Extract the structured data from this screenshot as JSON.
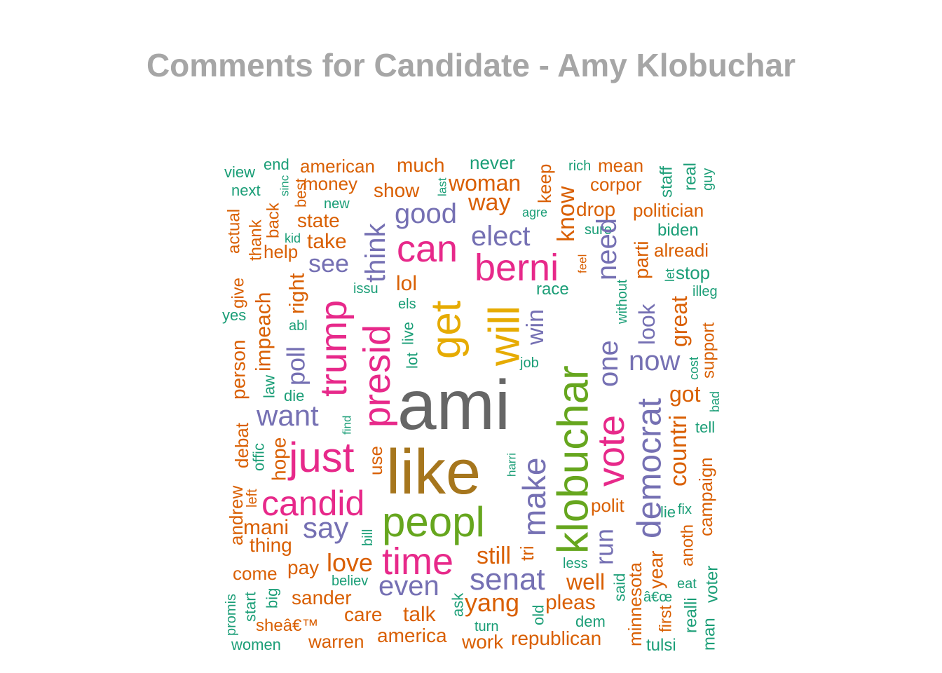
{
  "chart_data": {
    "type": "wordcloud",
    "title": "Comments for Candidate - Amy Klobuchar",
    "palette": {
      "orange": "#d95f02",
      "teal": "#1b9e77",
      "purple": "#7570b3",
      "magenta": "#e7298a",
      "green": "#66a61e",
      "gold": "#e6ab02",
      "brown": "#a6761d",
      "gray": "#666666"
    },
    "words": [
      {
        "text": "view",
        "color": "teal",
        "rotated": false
      },
      {
        "text": "end",
        "color": "teal",
        "rotated": false
      },
      {
        "text": "sinc",
        "color": "teal",
        "rotated": true
      },
      {
        "text": "next",
        "color": "teal",
        "rotated": false
      },
      {
        "text": "best",
        "color": "orange",
        "rotated": true
      },
      {
        "text": "american",
        "color": "orange",
        "rotated": false
      },
      {
        "text": "money",
        "color": "orange",
        "rotated": false
      },
      {
        "text": "much",
        "color": "orange",
        "rotated": false
      },
      {
        "text": "last",
        "color": "teal",
        "rotated": true
      },
      {
        "text": "show",
        "color": "orange",
        "rotated": false
      },
      {
        "text": "never",
        "color": "teal",
        "rotated": false
      },
      {
        "text": "woman",
        "color": "orange",
        "rotated": false
      },
      {
        "text": "keep",
        "color": "orange",
        "rotated": true
      },
      {
        "text": "rich",
        "color": "teal",
        "rotated": false
      },
      {
        "text": "mean",
        "color": "orange",
        "rotated": false
      },
      {
        "text": "corpor",
        "color": "orange",
        "rotated": false
      },
      {
        "text": "staff",
        "color": "teal",
        "rotated": true
      },
      {
        "text": "real",
        "color": "teal",
        "rotated": true
      },
      {
        "text": "guy",
        "color": "teal",
        "rotated": true
      },
      {
        "text": "new",
        "color": "teal",
        "rotated": false
      },
      {
        "text": "way",
        "color": "orange",
        "rotated": false
      },
      {
        "text": "agre",
        "color": "teal",
        "rotated": false
      },
      {
        "text": "know",
        "color": "orange",
        "rotated": true
      },
      {
        "text": "drop",
        "color": "orange",
        "rotated": false
      },
      {
        "text": "politician",
        "color": "orange",
        "rotated": false
      },
      {
        "text": "actual",
        "color": "orange",
        "rotated": true
      },
      {
        "text": "thank",
        "color": "orange",
        "rotated": true
      },
      {
        "text": "back",
        "color": "orange",
        "rotated": true
      },
      {
        "text": "state",
        "color": "orange",
        "rotated": false
      },
      {
        "text": "good",
        "color": "purple",
        "rotated": false
      },
      {
        "text": "sure",
        "color": "teal",
        "rotated": false
      },
      {
        "text": "biden",
        "color": "teal",
        "rotated": false
      },
      {
        "text": "kid",
        "color": "teal",
        "rotated": false
      },
      {
        "text": "take",
        "color": "orange",
        "rotated": false
      },
      {
        "text": "think",
        "color": "purple",
        "rotated": true
      },
      {
        "text": "elect",
        "color": "purple",
        "rotated": false
      },
      {
        "text": "need",
        "color": "purple",
        "rotated": true
      },
      {
        "text": "help",
        "color": "orange",
        "rotated": false
      },
      {
        "text": "can",
        "color": "magenta",
        "rotated": false
      },
      {
        "text": "alreadi",
        "color": "orange",
        "rotated": false
      },
      {
        "text": "feel",
        "color": "orange",
        "rotated": true
      },
      {
        "text": "parti",
        "color": "orange",
        "rotated": true
      },
      {
        "text": "see",
        "color": "purple",
        "rotated": false
      },
      {
        "text": "berni",
        "color": "magenta",
        "rotated": false
      },
      {
        "text": "stop",
        "color": "teal",
        "rotated": false
      },
      {
        "text": "let",
        "color": "teal",
        "rotated": true
      },
      {
        "text": "give",
        "color": "orange",
        "rotated": true
      },
      {
        "text": "right",
        "color": "orange",
        "rotated": true
      },
      {
        "text": "lol",
        "color": "orange",
        "rotated": false
      },
      {
        "text": "race",
        "color": "teal",
        "rotated": false
      },
      {
        "text": "without",
        "color": "teal",
        "rotated": true
      },
      {
        "text": "illeg",
        "color": "teal",
        "rotated": false
      },
      {
        "text": "issu",
        "color": "teal",
        "rotated": false
      },
      {
        "text": "impeach",
        "color": "orange",
        "rotated": true
      },
      {
        "text": "get",
        "color": "gold",
        "rotated": true
      },
      {
        "text": "look",
        "color": "purple",
        "rotated": true
      },
      {
        "text": "trump",
        "color": "magenta",
        "rotated": true
      },
      {
        "text": "yes",
        "color": "teal",
        "rotated": false
      },
      {
        "text": "els",
        "color": "teal",
        "rotated": false
      },
      {
        "text": "will",
        "color": "gold",
        "rotated": true
      },
      {
        "text": "one",
        "color": "purple",
        "rotated": true
      },
      {
        "text": "great",
        "color": "orange",
        "rotated": true
      },
      {
        "text": "win",
        "color": "purple",
        "rotated": true
      },
      {
        "text": "abl",
        "color": "teal",
        "rotated": false
      },
      {
        "text": "live",
        "color": "teal",
        "rotated": true
      },
      {
        "text": "presid",
        "color": "magenta",
        "rotated": true
      },
      {
        "text": "support",
        "color": "orange",
        "rotated": true
      },
      {
        "text": "poll",
        "color": "purple",
        "rotated": true
      },
      {
        "text": "person",
        "color": "orange",
        "rotated": true
      },
      {
        "text": "lot",
        "color": "teal",
        "rotated": true
      },
      {
        "text": "now",
        "color": "purple",
        "rotated": false
      },
      {
        "text": "job",
        "color": "teal",
        "rotated": false
      },
      {
        "text": "cost",
        "color": "teal",
        "rotated": true
      },
      {
        "text": "klobuchar",
        "color": "green",
        "rotated": true
      },
      {
        "text": "law",
        "color": "teal",
        "rotated": true
      },
      {
        "text": "die",
        "color": "teal",
        "rotated": false
      },
      {
        "text": "ami",
        "color": "gray",
        "rotated": false
      },
      {
        "text": "got",
        "color": "orange",
        "rotated": false
      },
      {
        "text": "bad",
        "color": "teal",
        "rotated": true
      },
      {
        "text": "want",
        "color": "purple",
        "rotated": false
      },
      {
        "text": "find",
        "color": "teal",
        "rotated": true
      },
      {
        "text": "vote",
        "color": "magenta",
        "rotated": true
      },
      {
        "text": "tell",
        "color": "teal",
        "rotated": false
      },
      {
        "text": "debat",
        "color": "orange",
        "rotated": true
      },
      {
        "text": "democrat",
        "color": "purple",
        "rotated": true
      },
      {
        "text": "countri",
        "color": "orange",
        "rotated": true
      },
      {
        "text": "offic",
        "color": "teal",
        "rotated": true
      },
      {
        "text": "just",
        "color": "magenta",
        "rotated": false
      },
      {
        "text": "hope",
        "color": "orange",
        "rotated": true
      },
      {
        "text": "use",
        "color": "orange",
        "rotated": true
      },
      {
        "text": "make",
        "color": "purple",
        "rotated": true
      },
      {
        "text": "like",
        "color": "brown",
        "rotated": false
      },
      {
        "text": "harri",
        "color": "teal",
        "rotated": true
      },
      {
        "text": "campaign",
        "color": "orange",
        "rotated": true
      },
      {
        "text": "andrew",
        "color": "orange",
        "rotated": true
      },
      {
        "text": "left",
        "color": "orange",
        "rotated": true
      },
      {
        "text": "candid",
        "color": "magenta",
        "rotated": false
      },
      {
        "text": "polit",
        "color": "orange",
        "rotated": false
      },
      {
        "text": "lie",
        "color": "teal",
        "rotated": false
      },
      {
        "text": "fix",
        "color": "teal",
        "rotated": false
      },
      {
        "text": "peopl",
        "color": "green",
        "rotated": false
      },
      {
        "text": "run",
        "color": "purple",
        "rotated": true
      },
      {
        "text": "mani",
        "color": "orange",
        "rotated": false
      },
      {
        "text": "say",
        "color": "purple",
        "rotated": false
      },
      {
        "text": "thing",
        "color": "orange",
        "rotated": false
      },
      {
        "text": "bill",
        "color": "teal",
        "rotated": true
      },
      {
        "text": "tri",
        "color": "orange",
        "rotated": true
      },
      {
        "text": "anoth",
        "color": "orange",
        "rotated": true
      },
      {
        "text": "still",
        "color": "orange",
        "rotated": false
      },
      {
        "text": "love",
        "color": "orange",
        "rotated": false
      },
      {
        "text": "time",
        "color": "magenta",
        "rotated": false
      },
      {
        "text": "less",
        "color": "teal",
        "rotated": false
      },
      {
        "text": "come",
        "color": "orange",
        "rotated": false
      },
      {
        "text": "pay",
        "color": "orange",
        "rotated": false
      },
      {
        "text": "senat",
        "color": "purple",
        "rotated": false
      },
      {
        "text": "well",
        "color": "orange",
        "rotated": false
      },
      {
        "text": "minnesota",
        "color": "orange",
        "rotated": true
      },
      {
        "text": "year",
        "color": "orange",
        "rotated": true
      },
      {
        "text": "eat",
        "color": "teal",
        "rotated": false
      },
      {
        "text": "voter",
        "color": "teal",
        "rotated": true
      },
      {
        "text": "believ",
        "color": "teal",
        "rotated": false
      },
      {
        "text": "even",
        "color": "purple",
        "rotated": false
      },
      {
        "text": "said",
        "color": "teal",
        "rotated": true
      },
      {
        "text": "promis",
        "color": "teal",
        "rotated": true
      },
      {
        "text": "big",
        "color": "teal",
        "rotated": true
      },
      {
        "text": "sander",
        "color": "orange",
        "rotated": false
      },
      {
        "text": "ask",
        "color": "teal",
        "rotated": true
      },
      {
        "text": "yang",
        "color": "orange",
        "rotated": false
      },
      {
        "text": "pleas",
        "color": "orange",
        "rotated": false
      },
      {
        "text": "â€œ",
        "color": "teal",
        "rotated": false
      },
      {
        "text": "start",
        "color": "teal",
        "rotated": true
      },
      {
        "text": "old",
        "color": "teal",
        "rotated": true
      },
      {
        "text": "realli",
        "color": "teal",
        "rotated": true
      },
      {
        "text": "first",
        "color": "orange",
        "rotated": true
      },
      {
        "text": "care",
        "color": "orange",
        "rotated": false
      },
      {
        "text": "talk",
        "color": "orange",
        "rotated": false
      },
      {
        "text": "dem",
        "color": "teal",
        "rotated": false
      },
      {
        "text": "man",
        "color": "teal",
        "rotated": true
      },
      {
        "text": "sheâ€™",
        "color": "orange",
        "rotated": false
      },
      {
        "text": "turn",
        "color": "teal",
        "rotated": false
      },
      {
        "text": "america",
        "color": "orange",
        "rotated": false
      },
      {
        "text": "republican",
        "color": "orange",
        "rotated": false
      },
      {
        "text": "women",
        "color": "teal",
        "rotated": false
      },
      {
        "text": "warren",
        "color": "orange",
        "rotated": false
      },
      {
        "text": "work",
        "color": "orange",
        "rotated": false
      },
      {
        "text": "tulsi",
        "color": "teal",
        "rotated": false
      }
    ]
  }
}
